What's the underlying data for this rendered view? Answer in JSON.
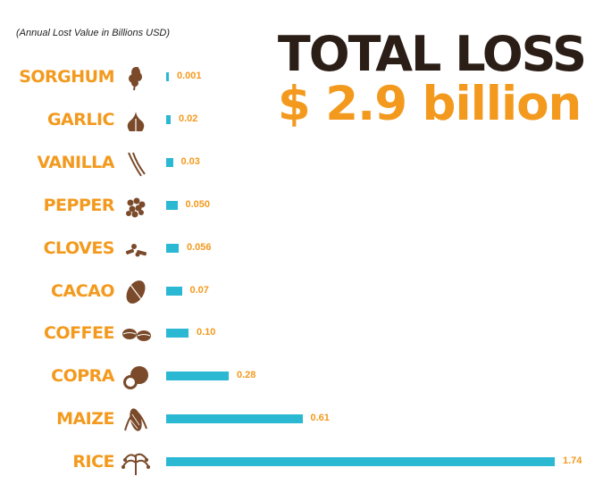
{
  "headline": {
    "line1": "TOTAL LOSS",
    "line2": "$ 2.9 billion"
  },
  "chart_data": {
    "type": "bar",
    "orientation": "horizontal",
    "subtitle": "(Annual Lost Value in Billions USD)",
    "categories": [
      "SORGHUM",
      "GARLIC",
      "VANILLA",
      "PEPPER",
      "CLOVES",
      "CACAO",
      "COFFEE",
      "COPRA",
      "MAIZE",
      "RICE"
    ],
    "values": [
      0.001,
      0.02,
      0.03,
      0.05,
      0.056,
      0.07,
      0.1,
      0.28,
      0.61,
      1.74
    ],
    "value_labels": [
      "0.001",
      "0.02",
      "0.03",
      "0.050",
      "0.056",
      "0.07",
      "0.10",
      "0.28",
      "0.61",
      "1.74"
    ],
    "icons": [
      "sorghum-icon",
      "garlic-icon",
      "vanilla-icon",
      "pepper-icon",
      "cloves-icon",
      "cacao-icon",
      "coffee-icon",
      "copra-icon",
      "maize-icon",
      "rice-icon"
    ],
    "xlim": [
      0,
      1.74
    ],
    "grid": false,
    "colors": {
      "bar": "#2ab8d3",
      "label": "#f39a1e",
      "icon": "#7a4a2a",
      "headline_dark": "#2b1e17"
    }
  }
}
